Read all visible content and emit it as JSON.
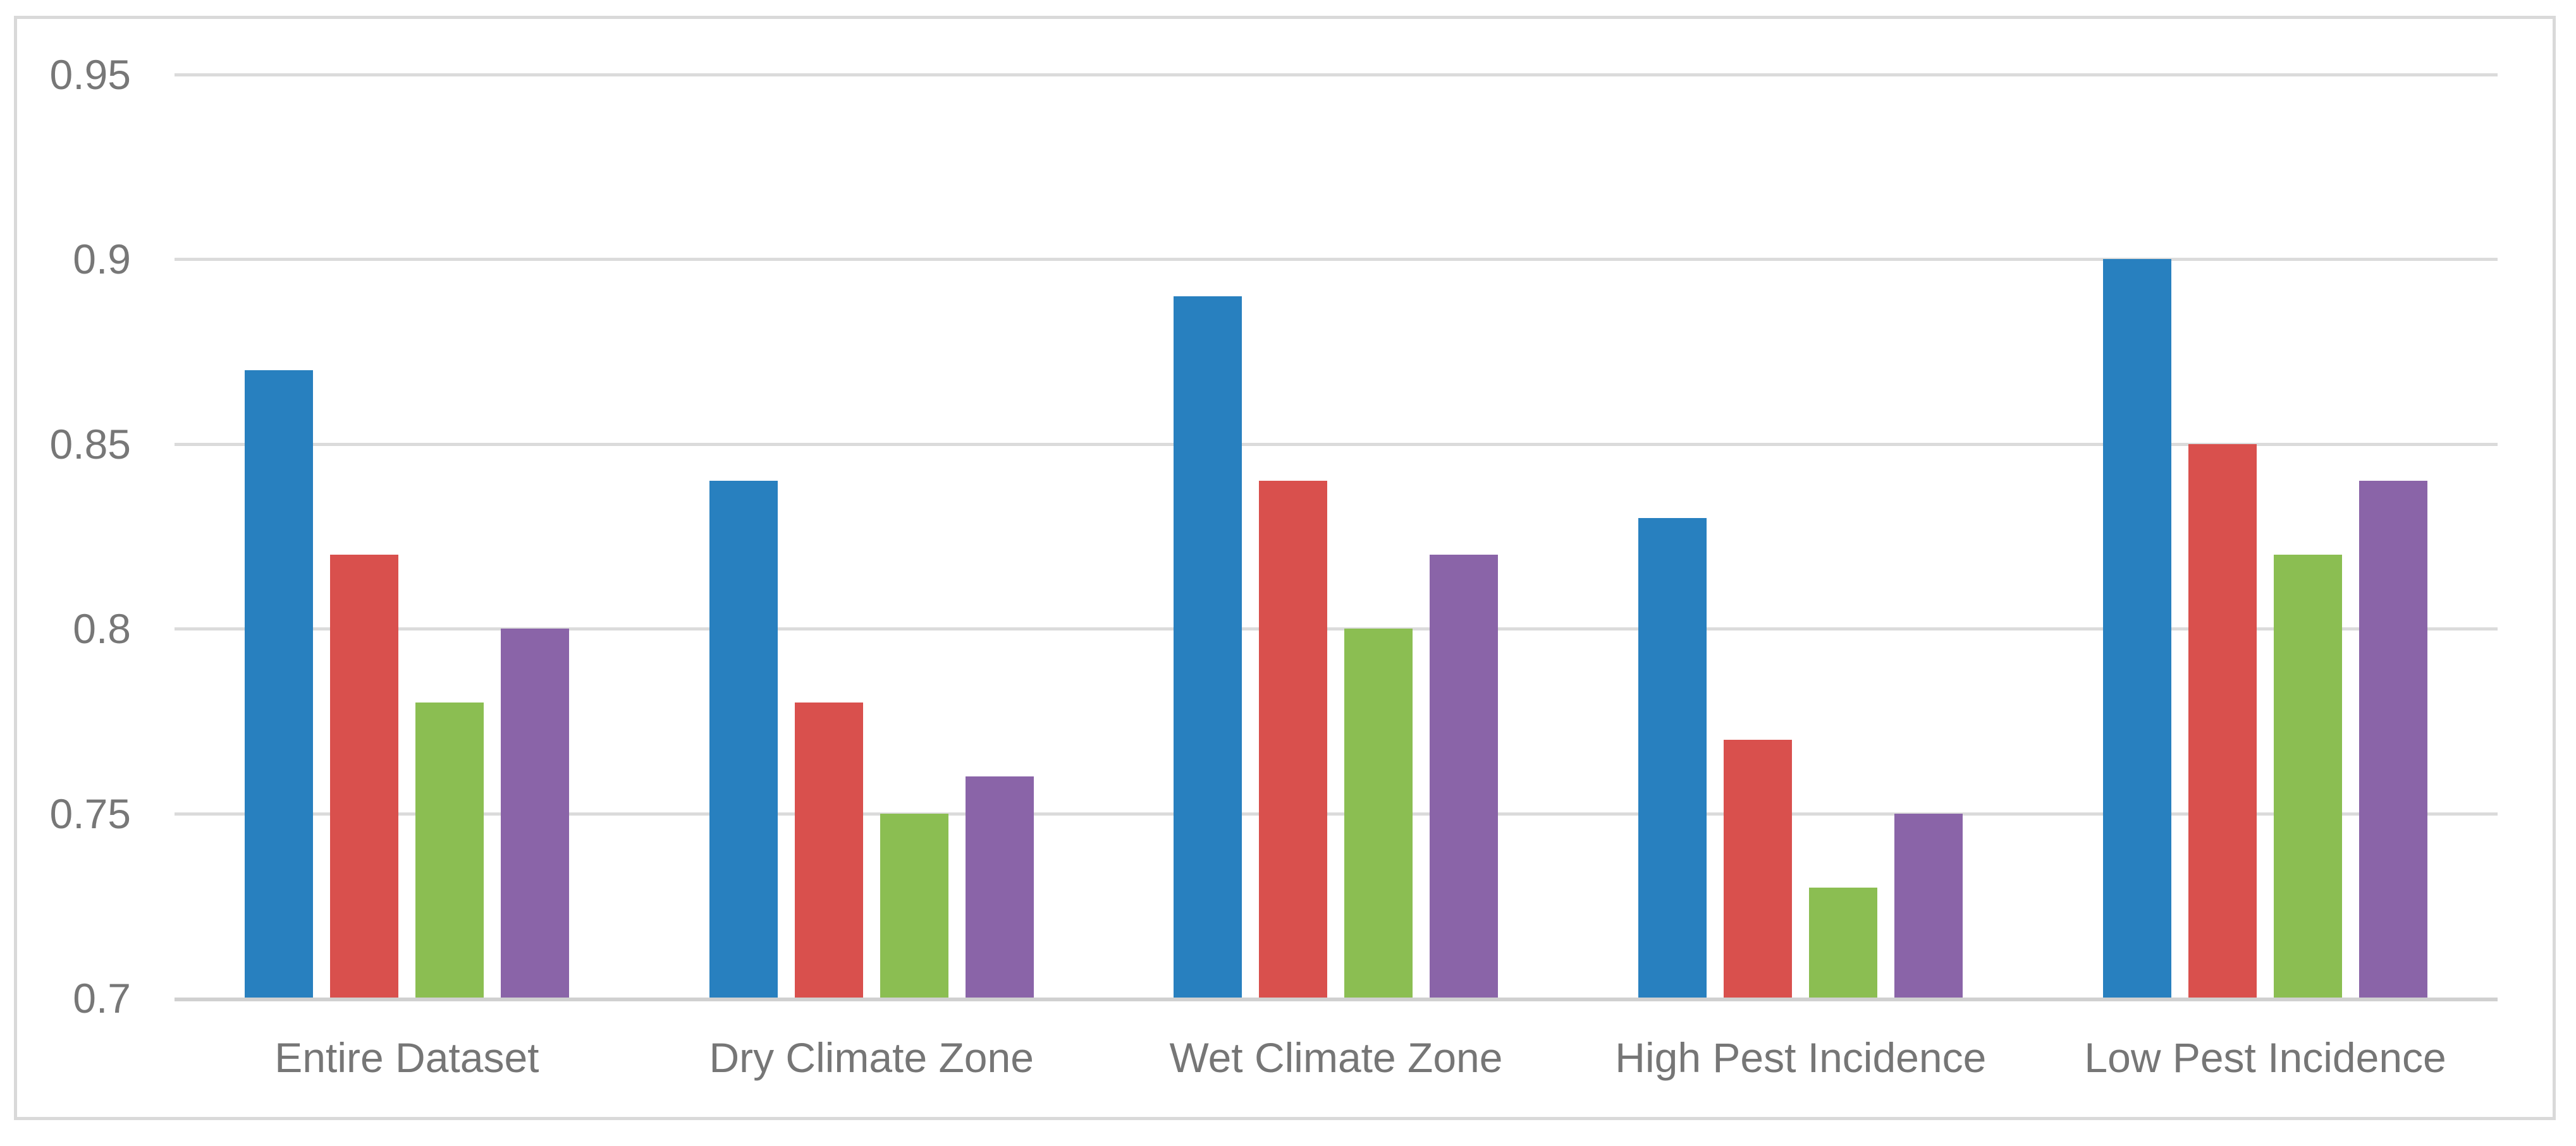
{
  "chart_data": {
    "type": "bar",
    "title": "",
    "xlabel": "",
    "ylabel": "",
    "categories": [
      "Entire Dataset",
      "Dry Climate Zone",
      "Wet Climate Zone",
      "High Pest Incidence",
      "Low Pest Incidence"
    ],
    "series": [
      {
        "color": "#2880BF",
        "values": [
          0.87,
          0.84,
          0.89,
          0.83,
          0.9
        ]
      },
      {
        "color": "#D9504D",
        "values": [
          0.82,
          0.78,
          0.84,
          0.77,
          0.85
        ]
      },
      {
        "color": "#8BBE52",
        "values": [
          0.78,
          0.75,
          0.8,
          0.73,
          0.82
        ]
      },
      {
        "color": "#8A64A8",
        "values": [
          0.8,
          0.76,
          0.82,
          0.75,
          0.84
        ]
      }
    ],
    "ylim": [
      0.7,
      0.95
    ],
    "yticks": [
      "0.95",
      "0.9",
      "0.85",
      "0.8",
      "0.75",
      "0.7"
    ],
    "grid": true,
    "legend": false,
    "theme": {
      "gridline_color": "#dbdbdb",
      "axis_line_color": "#d0d0d0",
      "frame_border_color": "#d9d9d9",
      "text_color": "#777777",
      "background": "#ffffff"
    }
  }
}
